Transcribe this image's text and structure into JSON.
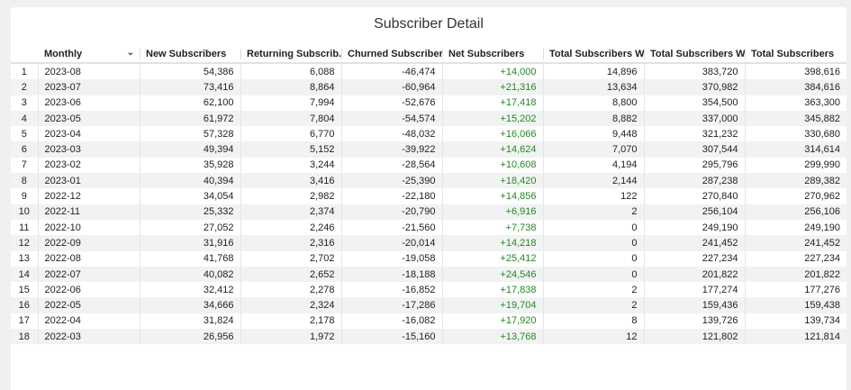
{
  "title": "Subscriber Detail",
  "columns": [
    "",
    "Monthly",
    "New Subscribers",
    "Returning Subscrib...",
    "Churned Subscribers",
    "Net Subscribers",
    "Total Subscribers W...",
    "Total Subscribers W...",
    "Total Subscribers"
  ],
  "sort_icon": "chevron-down-icon",
  "colors": {
    "net_positive": "#1e8e1e"
  },
  "rows": [
    [
      "1",
      "2023-08",
      "54,386",
      "6,088",
      "-46,474",
      "+14,000",
      "14,896",
      "383,720",
      "398,616"
    ],
    [
      "2",
      "2023-07",
      "73,416",
      "8,864",
      "-60,964",
      "+21,316",
      "13,634",
      "370,982",
      "384,616"
    ],
    [
      "3",
      "2023-06",
      "62,100",
      "7,994",
      "-52,676",
      "+17,418",
      "8,800",
      "354,500",
      "363,300"
    ],
    [
      "4",
      "2023-05",
      "61,972",
      "7,804",
      "-54,574",
      "+15,202",
      "8,882",
      "337,000",
      "345,882"
    ],
    [
      "5",
      "2023-04",
      "57,328",
      "6,770",
      "-48,032",
      "+16,066",
      "9,448",
      "321,232",
      "330,680"
    ],
    [
      "6",
      "2023-03",
      "49,394",
      "5,152",
      "-39,922",
      "+14,624",
      "7,070",
      "307,544",
      "314,614"
    ],
    [
      "7",
      "2023-02",
      "35,928",
      "3,244",
      "-28,564",
      "+10,608",
      "4,194",
      "295,796",
      "299,990"
    ],
    [
      "8",
      "2023-01",
      "40,394",
      "3,416",
      "-25,390",
      "+18,420",
      "2,144",
      "287,238",
      "289,382"
    ],
    [
      "9",
      "2022-12",
      "34,054",
      "2,982",
      "-22,180",
      "+14,856",
      "122",
      "270,840",
      "270,962"
    ],
    [
      "10",
      "2022-11",
      "25,332",
      "2,374",
      "-20,790",
      "+6,916",
      "2",
      "256,104",
      "256,106"
    ],
    [
      "11",
      "2022-10",
      "27,052",
      "2,246",
      "-21,560",
      "+7,738",
      "0",
      "249,190",
      "249,190"
    ],
    [
      "12",
      "2022-09",
      "31,916",
      "2,316",
      "-20,014",
      "+14,218",
      "0",
      "241,452",
      "241,452"
    ],
    [
      "13",
      "2022-08",
      "41,768",
      "2,702",
      "-19,058",
      "+25,412",
      "0",
      "227,234",
      "227,234"
    ],
    [
      "14",
      "2022-07",
      "40,082",
      "2,652",
      "-18,188",
      "+24,546",
      "0",
      "201,822",
      "201,822"
    ],
    [
      "15",
      "2022-06",
      "32,412",
      "2,278",
      "-16,852",
      "+17,838",
      "2",
      "177,274",
      "177,276"
    ],
    [
      "16",
      "2022-05",
      "34,666",
      "2,324",
      "-17,286",
      "+19,704",
      "2",
      "159,436",
      "159,438"
    ],
    [
      "17",
      "2022-04",
      "31,824",
      "2,178",
      "-16,082",
      "+17,920",
      "8",
      "139,726",
      "139,734"
    ],
    [
      "18",
      "2022-03",
      "26,956",
      "1,972",
      "-15,160",
      "+13,768",
      "12",
      "121,802",
      "121,814"
    ]
  ]
}
